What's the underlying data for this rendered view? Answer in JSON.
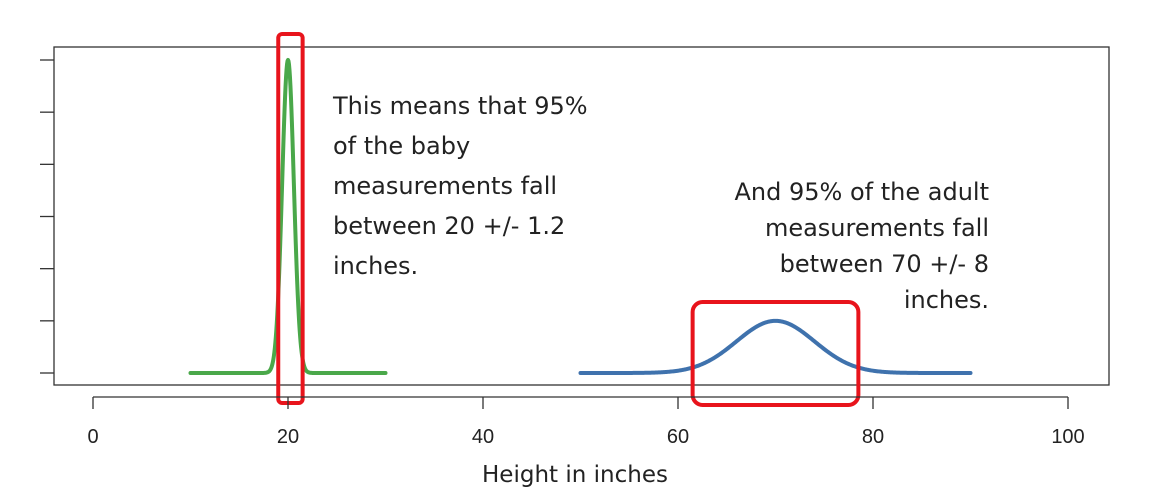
{
  "chart_data": {
    "type": "line",
    "xlabel": "Height in inches",
    "xlim": [
      0,
      100
    ],
    "x_ticks": [
      0,
      20,
      40,
      60,
      80,
      100
    ],
    "y_ticks": [
      0,
      1,
      2,
      3,
      4,
      5,
      6
    ],
    "y_tick_labels_visible": false,
    "grid": false,
    "series": [
      {
        "type": "normal_curve",
        "mean": 20,
        "sd": 0.6,
        "x_range": [
          10,
          30
        ],
        "color": "#4aa84a",
        "peak": 6.0
      },
      {
        "type": "normal_curve",
        "mean": 70,
        "sd": 4,
        "x_range": [
          50,
          90
        ],
        "color": "#3f72ad",
        "peak": 1.0
      }
    ],
    "highlight_boxes": [
      {
        "x_range": [
          19.0,
          21.5
        ],
        "color": "#e8141c"
      },
      {
        "x_range": [
          61.5,
          78.5
        ],
        "color": "#e8141c"
      }
    ],
    "annotations": [
      {
        "name": "baby",
        "lines": [
          "This means that 95%",
          "of the baby",
          "measurements fall",
          "between 20 +/- 1.2",
          "inches."
        ]
      },
      {
        "name": "adult",
        "lines": [
          "And 95% of the adult",
          "measurements fall",
          "between 70 +/- 8",
          "inches."
        ]
      }
    ]
  }
}
